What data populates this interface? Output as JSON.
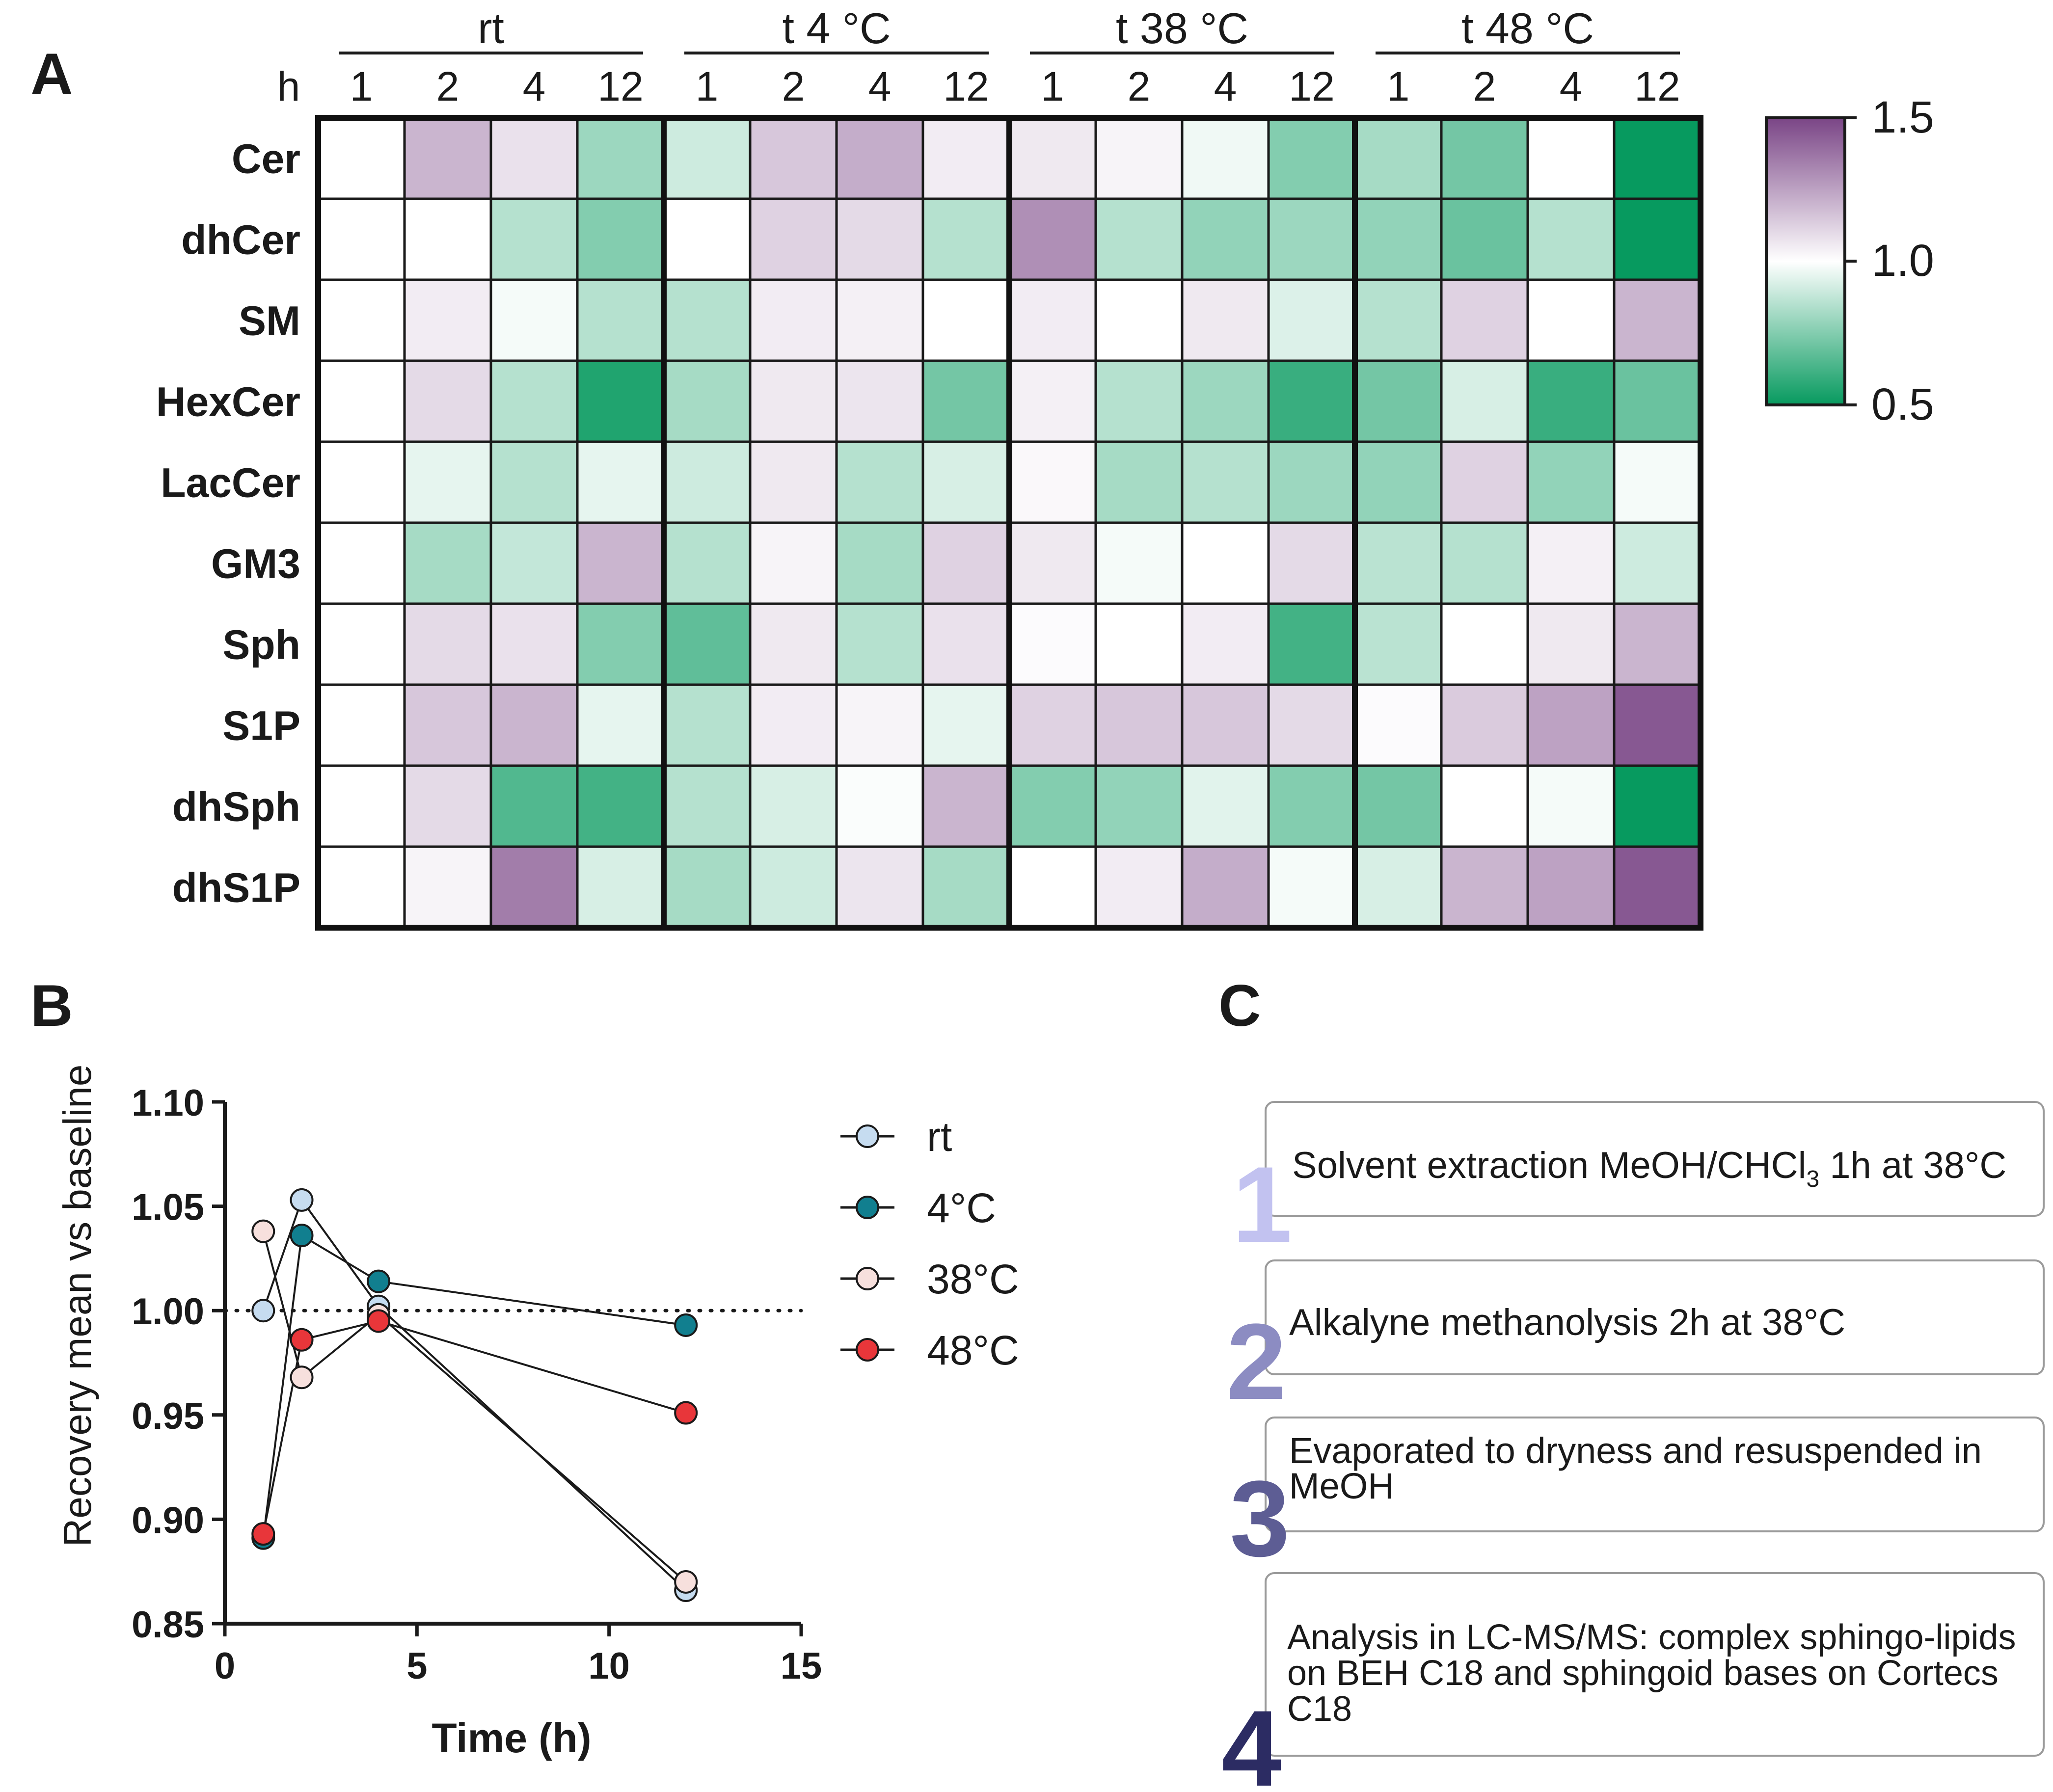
{
  "panel_labels": {
    "a": "A",
    "b": "B",
    "c": "C"
  },
  "chart_data": [
    {
      "type": "heatmap",
      "panel": "A",
      "time_axis_label": "h",
      "groups": [
        {
          "name": "rt",
          "hours": [
            "1",
            "2",
            "4",
            "12"
          ]
        },
        {
          "name": "t 4  °C",
          "hours": [
            "1",
            "2",
            "4",
            "12"
          ]
        },
        {
          "name": "t 38  °C",
          "hours": [
            "1",
            "2",
            "4",
            "12"
          ]
        },
        {
          "name": "t 48  °C",
          "hours": [
            "1",
            "2",
            "4",
            "12"
          ]
        }
      ],
      "rows": [
        "Cer",
        "dhCer",
        "SM",
        "HexCer",
        "LacCer",
        "GM3",
        "Sph",
        "S1P",
        "dhSph",
        "dhS1P"
      ],
      "values": [
        [
          1.0,
          1.2,
          1.08,
          0.8,
          0.9,
          1.15,
          1.22,
          1.05,
          1.06,
          1.03,
          0.97,
          0.75,
          0.82,
          0.72,
          1.0,
          0.5
        ],
        [
          1.0,
          1.0,
          0.85,
          0.75,
          1.0,
          1.12,
          1.1,
          0.85,
          1.3,
          0.85,
          0.78,
          0.8,
          0.78,
          0.7,
          0.85,
          0.5
        ],
        [
          1.0,
          1.05,
          0.98,
          0.85,
          0.85,
          1.05,
          1.04,
          1.0,
          1.05,
          1.0,
          1.06,
          0.93,
          0.85,
          1.12,
          1.0,
          1.2
        ],
        [
          1.0,
          1.1,
          0.85,
          0.55,
          0.82,
          1.06,
          1.07,
          0.72,
          1.04,
          0.85,
          0.8,
          0.6,
          0.72,
          0.92,
          0.6,
          0.7
        ],
        [
          1.0,
          0.95,
          0.85,
          0.95,
          0.9,
          1.06,
          0.85,
          0.92,
          1.02,
          0.82,
          0.85,
          0.8,
          0.78,
          1.12,
          0.78,
          0.98
        ],
        [
          1.0,
          0.82,
          0.88,
          1.2,
          0.85,
          1.03,
          0.82,
          1.12,
          1.06,
          0.98,
          1.0,
          1.1,
          0.86,
          0.85,
          1.04,
          0.9
        ],
        [
          1.0,
          1.1,
          1.08,
          0.75,
          0.68,
          1.06,
          0.85,
          1.08,
          1.01,
          1.0,
          1.05,
          0.62,
          0.86,
          1.0,
          1.06,
          1.2
        ],
        [
          1.0,
          1.15,
          1.2,
          0.95,
          0.85,
          1.05,
          1.03,
          0.95,
          1.12,
          1.15,
          1.15,
          1.1,
          1.01,
          1.14,
          1.25,
          1.45
        ],
        [
          1.0,
          1.1,
          0.65,
          0.62,
          0.85,
          0.92,
          0.99,
          1.2,
          0.75,
          0.78,
          0.94,
          0.75,
          0.72,
          1.0,
          0.98,
          0.5
        ],
        [
          1.0,
          1.03,
          1.35,
          0.92,
          0.82,
          0.9,
          1.07,
          0.82,
          1.0,
          1.05,
          1.22,
          0.98,
          0.92,
          1.2,
          1.25,
          1.45
        ]
      ],
      "color_min": "#079a5f",
      "color_mid": "#ffffff",
      "color_max": "#7a4586",
      "colorbar": {
        "min": 0.5,
        "max": 1.5,
        "ticks": [
          "1.5",
          "1.0",
          "0.5"
        ]
      }
    },
    {
      "type": "line",
      "panel": "B",
      "xlabel": "Time (h)",
      "ylabel": "Recovery mean vs baseline",
      "xlim": [
        0,
        15
      ],
      "ylim": [
        0.85,
        1.1
      ],
      "xticks": [
        "0",
        "5",
        "10",
        "15"
      ],
      "yticks": [
        "0.85",
        "0.90",
        "0.95",
        "1.00",
        "1.05",
        "1.10"
      ],
      "reference_line": 1.0,
      "legend_position": "right",
      "x": [
        1,
        2,
        4,
        12
      ],
      "series": [
        {
          "name": "rt",
          "values": [
            1.0,
            1.053,
            1.002,
            0.866
          ],
          "color": "#c6dcf0"
        },
        {
          "name": "4°C",
          "values": [
            0.891,
            1.036,
            1.014,
            0.993
          ],
          "color": "#117f8f"
        },
        {
          "name": "38°C",
          "values": [
            1.038,
            0.968,
            0.998,
            0.87
          ],
          "color": "#f7e0dd"
        },
        {
          "name": "48°C",
          "values": [
            0.893,
            0.986,
            0.995,
            0.951
          ],
          "color": "#e8363a"
        }
      ]
    }
  ],
  "workflow": {
    "steps": [
      {
        "number": "1",
        "text": "Solvent extraction MeOH/CHCl",
        "subscript": "3",
        "text_after": " 1h at 38°C",
        "number_color": "#c2c2f0"
      },
      {
        "number": "2",
        "text": "Alkalyne methanolysis 2h at 38°C",
        "subscript": "",
        "text_after": "",
        "number_color": "#8c8cc2"
      },
      {
        "number": "3",
        "text": "Evaporated to dryness and resuspended in MeOH",
        "subscript": "",
        "text_after": "",
        "number_color": "#5d5d94"
      },
      {
        "number": "4",
        "text": "Analysis in LC-MS/MS: complex sphingo-lipids on BEH C18 and sphingoid bases on Cortecs C18",
        "subscript": "",
        "text_after": "",
        "number_color": "#2c2c63"
      }
    ]
  }
}
